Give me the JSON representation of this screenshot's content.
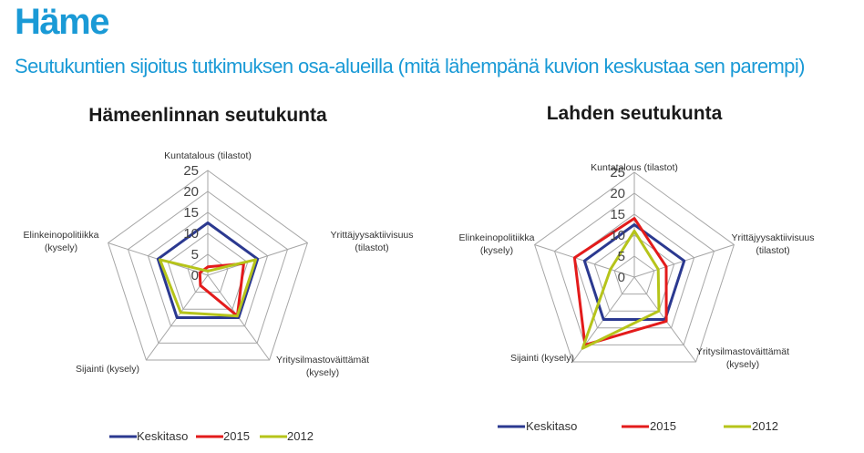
{
  "header": {
    "title": "Häme",
    "subtitle": "Seutukuntien sijoitus tutkimuksen osa-alueilla (mitä lähempänä kuvion keskustaa sen parempi)"
  },
  "colors": {
    "accent": "#1a9ad6",
    "grid": "#a6a6a6",
    "Keskitaso": "#2b3990",
    "2015": "#e31b1b",
    "2012": "#b6c41a"
  },
  "chart_data": [
    {
      "type": "radar",
      "title": "Hämeenlinnan seutukunta",
      "categories": [
        [
          "Kuntatalous (tilastot)"
        ],
        [
          "Yrittäjyysaktiivisuus",
          "(tilastot)"
        ],
        [
          "Yritysilmastoväittämät",
          "(kysely)"
        ],
        [
          "Sijainti (kysely)"
        ],
        [
          "Elinkeinopolitiikka",
          "(kysely)"
        ]
      ],
      "ticks": [
        0,
        5,
        10,
        15,
        20,
        25
      ],
      "range": [
        0,
        25
      ],
      "grid": true,
      "legend": "bottom",
      "series": [
        {
          "name": "Keskitaso",
          "values": [
            12.5,
            12.5,
            12.5,
            12.5,
            12.5
          ]
        },
        {
          "name": "2015",
          "values": [
            2,
            9,
            12,
            3,
            2
          ]
        },
        {
          "name": "2012",
          "values": [
            1,
            12,
            12,
            11,
            12
          ]
        }
      ]
    },
    {
      "type": "radar",
      "title": "Lahden seutukunta",
      "categories": [
        [
          "Kuntatalous (tilastot)"
        ],
        [
          "Yrittäjyysaktiivisuus",
          "(tilastot)"
        ],
        [
          "Yritysilmastoväittämät",
          "(kysely)"
        ],
        [
          "Sijainti (kysely)"
        ],
        [
          "Elinkeinopolitiikka",
          "(kysely)"
        ]
      ],
      "ticks": [
        0,
        5,
        10,
        15,
        20,
        25
      ],
      "range": [
        0,
        25
      ],
      "grid": true,
      "legend": "bottom",
      "series": [
        {
          "name": "Keskitaso",
          "values": [
            12.5,
            12.5,
            12.5,
            12.5,
            12.5
          ]
        },
        {
          "name": "2015",
          "values": [
            14,
            8,
            13,
            20,
            15
          ]
        },
        {
          "name": "2012",
          "values": [
            11,
            6,
            10,
            21,
            6
          ]
        }
      ]
    }
  ]
}
